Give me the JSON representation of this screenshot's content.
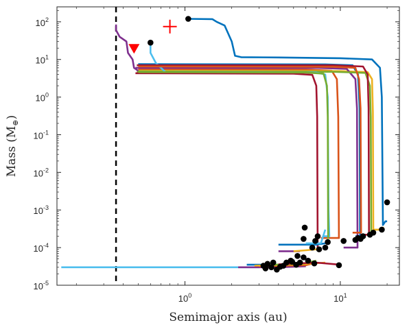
{
  "chart_data": {
    "type": "line",
    "xlabel": "Semimajor axis (au)",
    "ylabel": "Mass (M",
    "ylabel_symbol": "⊕",
    "ylabel_close": ")",
    "x_scale": "log",
    "y_scale": "log",
    "xlim": [
      0.15,
      24
    ],
    "ylim": [
      1e-05,
      250
    ],
    "x_ticks": [
      {
        "base": "10",
        "exp": "0",
        "value": 1
      },
      {
        "base": "10",
        "exp": "1",
        "value": 10
      }
    ],
    "y_ticks": [
      {
        "base": "10",
        "exp": "2",
        "value": 100
      },
      {
        "base": "10",
        "exp": "1",
        "value": 10
      },
      {
        "base": "10",
        "exp": "0",
        "value": 1
      },
      {
        "base": "10",
        "exp": "-1",
        "value": 0.1
      },
      {
        "base": "10",
        "exp": "-2",
        "value": 0.01
      },
      {
        "base": "10",
        "exp": "-3",
        "value": 0.001
      },
      {
        "base": "10",
        "exp": "-4",
        "value": 0.0001
      },
      {
        "base": "10",
        "exp": "-5",
        "value": 1e-05
      }
    ],
    "grid": false,
    "vertical_line": {
      "x": 0.36,
      "style": "dashed",
      "color": "#000000"
    },
    "markers": [
      {
        "kind": "plus",
        "x": 0.8,
        "y": 75,
        "color": "#ff0000"
      },
      {
        "kind": "triangle-down",
        "x": 0.47,
        "y": 20,
        "color": "#ff0000"
      }
    ],
    "series": [
      {
        "color": "#0072BD",
        "points": [
          [
            1.05,
            120
          ],
          [
            1.5,
            118
          ],
          [
            1.6,
            100
          ],
          [
            1.8,
            80
          ],
          [
            2.0,
            30
          ],
          [
            2.1,
            12.5
          ],
          [
            2.3,
            11.5
          ],
          [
            4,
            11.3
          ],
          [
            10,
            10.8
          ],
          [
            16,
            10
          ],
          [
            18,
            6
          ],
          [
            18.5,
            1
          ],
          [
            18.8,
            0.0004
          ],
          [
            19.5,
            0.0005
          ],
          [
            20,
            0.0005
          ]
        ]
      },
      {
        "color": "#0072BD",
        "points": [
          [
            0.5,
            7.5
          ],
          [
            8,
            7.4
          ],
          [
            12,
            7
          ],
          [
            13,
            4
          ],
          [
            13.3,
            0.5
          ],
          [
            13.4,
            0.0002
          ],
          [
            12.5,
            0.0002
          ]
        ]
      },
      {
        "color": "#D95319",
        "points": [
          [
            0.5,
            5.5
          ],
          [
            6,
            5.4
          ],
          [
            8.8,
            5
          ],
          [
            9.5,
            3
          ],
          [
            9.7,
            0.3
          ],
          [
            9.8,
            0.00018
          ],
          [
            7.5,
            0.00018
          ]
        ]
      },
      {
        "color": "#EDB120",
        "points": [
          [
            0.5,
            5
          ],
          [
            10,
            4.9
          ],
          [
            15,
            4.6
          ],
          [
            16,
            3
          ],
          [
            16.2,
            0.4
          ],
          [
            16.3,
            0.0003
          ],
          [
            18.5,
            0.0003
          ],
          [
            19,
            0.00035
          ]
        ]
      },
      {
        "color": "#7E2F8E",
        "points": [
          [
            0.48,
            6
          ],
          [
            7,
            6
          ],
          [
            11,
            5.6
          ],
          [
            12.5,
            3
          ],
          [
            12.8,
            0.5
          ],
          [
            12.9,
            0.0001
          ],
          [
            10.5,
            0.0001
          ]
        ]
      },
      {
        "color": "#77AC30",
        "points": [
          [
            0.49,
            4.8
          ],
          [
            9,
            4.7
          ],
          [
            14.5,
            4.4
          ],
          [
            15.5,
            2
          ],
          [
            15.7,
            0.3
          ],
          [
            15.8,
            0.00025
          ],
          [
            16.5,
            0.00025
          ]
        ]
      },
      {
        "color": "#4DBEEE",
        "points": [
          [
            0.6,
            30
          ],
          [
            0.6,
            15
          ],
          [
            0.65,
            8
          ],
          [
            0.75,
            4.6
          ],
          [
            7,
            4.5
          ],
          [
            8,
            4
          ],
          [
            8.3,
            1
          ],
          [
            8.4,
            0.001
          ],
          [
            8.5,
            0.0002
          ],
          [
            7.8,
            0.0002
          ]
        ]
      },
      {
        "color": "#A2142F",
        "points": [
          [
            0.48,
            4.3
          ],
          [
            5,
            4.2
          ],
          [
            6.6,
            3.9
          ],
          [
            7,
            2
          ],
          [
            7.1,
            0.3
          ],
          [
            7.15,
            0.0001
          ]
        ]
      },
      {
        "color": "#A2142F",
        "points": [
          [
            0.49,
            7
          ],
          [
            9,
            7
          ],
          [
            14,
            6.5
          ],
          [
            15,
            4
          ],
          [
            15.2,
            0.5
          ],
          [
            15.3,
            0.00022
          ],
          [
            13.5,
            0.00022
          ]
        ]
      },
      {
        "color": "#D95319",
        "points": [
          [
            0.5,
            6.5
          ],
          [
            9,
            6.4
          ],
          [
            12.5,
            6
          ],
          [
            13.2,
            3
          ],
          [
            13.5,
            0.5
          ],
          [
            13.6,
            0.00025
          ],
          [
            12,
            0.00025
          ]
        ]
      },
      {
        "color": "#77AC30",
        "points": [
          [
            0.5,
            4.6
          ],
          [
            6,
            4.5
          ],
          [
            7.8,
            4.2
          ],
          [
            8.2,
            2
          ],
          [
            8.3,
            0.3
          ],
          [
            8.35,
            0.00017
          ]
        ]
      },
      {
        "color": "#7E2F8E",
        "points": [
          [
            0.36,
            85
          ],
          [
            0.36,
            60
          ],
          [
            0.38,
            40
          ],
          [
            0.42,
            30
          ],
          [
            0.43,
            15
          ],
          [
            0.46,
            10
          ],
          [
            0.47,
            6
          ],
          [
            0.5,
            5
          ]
        ]
      },
      {
        "color": "#4DBEEE",
        "points": [
          [
            0.16,
            3e-05
          ],
          [
            2,
            3e-05
          ],
          [
            3,
            3e-05
          ],
          [
            3.5,
            3.5e-05
          ]
        ]
      },
      {
        "color": "#7E2F8E",
        "points": [
          [
            2.2,
            3e-05
          ],
          [
            4,
            3e-05
          ],
          [
            6,
            3.2e-05
          ]
        ]
      },
      {
        "color": "#0072BD",
        "points": [
          [
            2.5,
            3.5e-05
          ],
          [
            4.5,
            3.5e-05
          ],
          [
            5,
            4e-05
          ]
        ]
      },
      {
        "color": "#D95319",
        "points": [
          [
            3,
            3.2e-05
          ],
          [
            6,
            3.4e-05
          ],
          [
            7,
            4e-05
          ]
        ]
      },
      {
        "color": "#EDB120",
        "points": [
          [
            2.8,
            3.3e-05
          ],
          [
            5.5,
            3.6e-05
          ],
          [
            8,
            4e-05
          ]
        ]
      },
      {
        "color": "#77AC30",
        "points": [
          [
            3.2,
            3.4e-05
          ],
          [
            5.8,
            3.8e-05
          ],
          [
            7,
            4.5e-05
          ]
        ]
      },
      {
        "color": "#A2142F",
        "points": [
          [
            4,
            3.6e-05
          ],
          [
            7,
            4e-05
          ],
          [
            10,
            3.5e-05
          ]
        ]
      },
      {
        "color": "#0072BD",
        "points": [
          [
            4,
            0.00012
          ],
          [
            7,
            0.00012
          ],
          [
            8,
            0.00013
          ]
        ]
      },
      {
        "color": "#4DBEEE",
        "points": [
          [
            6,
            0.00013
          ],
          [
            7.5,
            0.00013
          ],
          [
            8,
            0.0003
          ]
        ]
      },
      {
        "color": "#7E2F8E",
        "points": [
          [
            4,
            8e-05
          ],
          [
            5,
            8e-05
          ],
          [
            5.5,
            8e-05
          ]
        ]
      },
      {
        "color": "#EDB120",
        "points": [
          [
            5,
            8e-05
          ],
          [
            6,
            8.5e-05
          ],
          [
            7,
            9e-05
          ]
        ]
      }
    ],
    "dots": [
      [
        1.05,
        120
      ],
      [
        0.6,
        28
      ],
      [
        20,
        0.0016
      ],
      [
        18.5,
        0.0003
      ],
      [
        16.3,
        0.00025
      ],
      [
        15.5,
        0.00022
      ],
      [
        14,
        0.0002
      ],
      [
        13,
        0.00018
      ],
      [
        13.5,
        0.00017
      ],
      [
        12.5,
        0.00016
      ],
      [
        10.5,
        0.00015
      ],
      [
        8.3,
        0.00014
      ],
      [
        8,
        0.0001
      ],
      [
        7.3,
        9e-05
      ],
      [
        6.6,
        0.0001
      ],
      [
        6.9,
        0.00015
      ],
      [
        5.9,
        0.00034
      ],
      [
        7.15,
        0.0002
      ],
      [
        5.8,
        0.00017
      ],
      [
        5.3,
        6e-05
      ],
      [
        5.8,
        5.5e-05
      ],
      [
        6.2,
        4.5e-05
      ],
      [
        5.5,
        4e-05
      ],
      [
        4.9,
        4.2e-05
      ],
      [
        4.5,
        4e-05
      ],
      [
        4.3,
        3.3e-05
      ],
      [
        3.7,
        4e-05
      ],
      [
        3.4,
        3.7e-05
      ],
      [
        3.2,
        3.3e-05
      ],
      [
        3.6,
        3e-05
      ],
      [
        3.9,
        2.6e-05
      ],
      [
        3.3,
        2.8e-05
      ],
      [
        4.1,
        3.1e-05
      ],
      [
        5.2,
        3.5e-05
      ],
      [
        9.8,
        3.4e-05
      ],
      [
        4.8,
        4.5e-05
      ],
      [
        6.8,
        3.8e-05
      ]
    ]
  }
}
